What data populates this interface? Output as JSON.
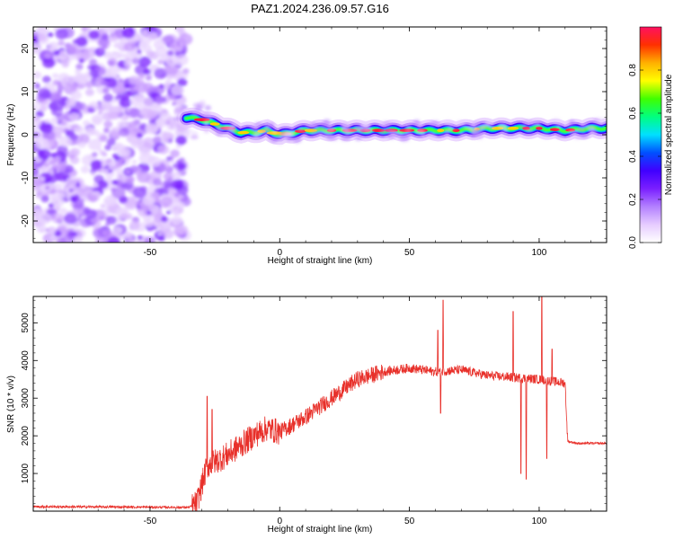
{
  "title": "PAZ1.2024.236.09.57.G16",
  "chart_data": [
    {
      "type": "heatmap",
      "xlabel": "Height of straight line (km)",
      "ylabel": "Frequency (Hz)",
      "xlim": [
        -95,
        126
      ],
      "ylim": [
        -25,
        25
      ],
      "x_ticks": [
        -50,
        0,
        50,
        100
      ],
      "y_ticks": [
        -20,
        -10,
        0,
        10,
        20
      ],
      "colorbar": {
        "label": "Normalized spectral amplitude",
        "range": [
          0,
          1
        ],
        "ticks": [
          "0.0",
          "0.2",
          "0.4",
          "0.6",
          "0.8"
        ],
        "tick_values": [
          0.0,
          0.2,
          0.4,
          0.6,
          0.8
        ],
        "colors": [
          "#ffffff",
          "#e6ccff",
          "#b380ff",
          "#7a1fff",
          "#4000ff",
          "#0050ff",
          "#00e0ff",
          "#00ff80",
          "#40ff00",
          "#ffff00",
          "#ffb000",
          "#ff3000",
          "#ff1060"
        ]
      },
      "ridge": {
        "x": [
          -36,
          -30,
          -25,
          -20,
          -15,
          -10,
          -5,
          0,
          5,
          10,
          20,
          30,
          40,
          50,
          60,
          70,
          80,
          90,
          100,
          110,
          120,
          126
        ],
        "freq": [
          4,
          3.5,
          2.5,
          1.5,
          0.5,
          0.5,
          1,
          0,
          0.5,
          1,
          1,
          1,
          1,
          1,
          1,
          1,
          1.5,
          1.5,
          1.5,
          1,
          1.5,
          1.5
        ]
      },
      "noise_region_x": [
        -95,
        -36
      ]
    },
    {
      "type": "line",
      "xlabel": "Height of straight line (km)",
      "ylabel": "SNR (10 * v/v)",
      "xlim": [
        -95,
        126
      ],
      "ylim": [
        0,
        5700
      ],
      "x_ticks": [
        -50,
        0,
        50,
        100
      ],
      "y_ticks": [
        1000,
        2000,
        3000,
        4000,
        5000
      ],
      "color": "#e8302a",
      "trend": {
        "x": [
          -95,
          -60,
          -35,
          -32,
          -28,
          -20,
          -10,
          -5,
          0,
          10,
          20,
          30,
          40,
          50,
          60,
          70,
          80,
          90,
          100,
          110,
          111,
          115,
          126
        ],
        "y": [
          120,
          110,
          100,
          200,
          1200,
          1500,
          2000,
          2200,
          2100,
          2500,
          3000,
          3500,
          3700,
          3800,
          3700,
          3750,
          3600,
          3550,
          3500,
          3400,
          1850,
          1800,
          1800
        ]
      },
      "spikes": [
        {
          "x": -28,
          "y": 3050
        },
        {
          "x": -26,
          "y": 2700
        },
        {
          "x": 63,
          "y": 5600
        },
        {
          "x": 61,
          "y": 4800
        },
        {
          "x": 62,
          "y": 2600
        },
        {
          "x": 90,
          "y": 5300
        },
        {
          "x": 93,
          "y": 1000
        },
        {
          "x": 95,
          "y": 850
        },
        {
          "x": 101,
          "y": 5700
        },
        {
          "x": 103,
          "y": 1400
        },
        {
          "x": 105,
          "y": 4300
        }
      ]
    }
  ]
}
